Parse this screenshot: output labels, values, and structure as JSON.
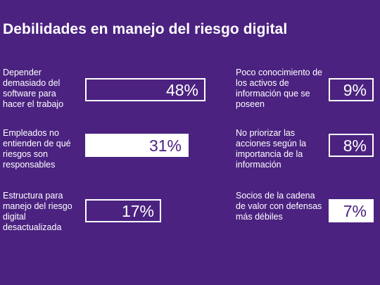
{
  "title": "Debilidades en manejo del riesgo digital",
  "colors": {
    "background": "#4b2280",
    "foreground": "#ffffff"
  },
  "chart_data": {
    "type": "table",
    "title": "Debilidades en manejo del riesgo digital",
    "unit": "%",
    "items": [
      {
        "label": "Depender demasiado del software para hacer el trabajo",
        "value": 48,
        "display": "48%",
        "style": "outline"
      },
      {
        "label": "Empleados no entienden de qué riesgos son responsables",
        "value": 31,
        "display": "31%",
        "style": "filled"
      },
      {
        "label": "Estructura para manejo del riesgo digital desactualizada",
        "value": 17,
        "display": "17%",
        "style": "outline"
      },
      {
        "label": "Poco conocimiento de los activos de información que se poseen",
        "value": 9,
        "display": "9%",
        "style": "outline"
      },
      {
        "label": "No priorizar las acciones según la importancia de la información",
        "value": 8,
        "display": "8%",
        "style": "outline"
      },
      {
        "label": "Socios de la cadena de valor con defensas más débiles",
        "value": 7,
        "display": "7%",
        "style": "filled"
      }
    ]
  }
}
